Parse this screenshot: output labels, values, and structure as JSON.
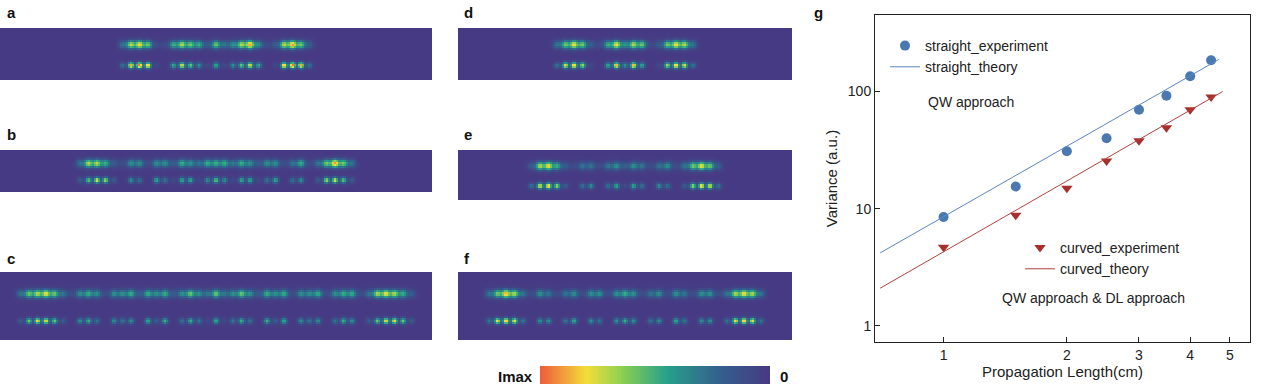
{
  "panels": [
    {
      "label": "a",
      "top": [
        0.3,
        0.7,
        0.8,
        0.6,
        0.1,
        0.1,
        0.5,
        0.7,
        0.6,
        0.5,
        0.2,
        0.6,
        0.3,
        0.4,
        0.7,
        0.9,
        0.4,
        0.1,
        0.2,
        0.7,
        0.9,
        0.6,
        0.2
      ],
      "bottom": [
        0.3,
        0.9,
        1.0,
        0.9,
        0.1,
        0.0,
        0.5,
        0.8,
        0.6,
        0.4,
        0.1,
        0.5,
        0.1,
        0.4,
        0.6,
        0.8,
        0.5,
        0.0,
        0.1,
        0.9,
        1.0,
        0.9,
        0.3
      ]
    },
    {
      "label": "b",
      "top": [
        0.3,
        0.7,
        0.7,
        0.5,
        0.2,
        0.1,
        0.4,
        0.4,
        0.1,
        0.4,
        0.4,
        0.2,
        0.5,
        0.4,
        0.3,
        0.5,
        0.5,
        0.5,
        0.3,
        0.5,
        0.4,
        0.2,
        0.4,
        0.4,
        0.1,
        0.3,
        0.5,
        0.1,
        0.3,
        0.6,
        0.9,
        0.6,
        0.3
      ],
      "bottom": [
        0.2,
        0.6,
        0.8,
        0.7,
        0.2,
        0.0,
        0.4,
        0.3,
        0.0,
        0.5,
        0.3,
        0.1,
        0.5,
        0.5,
        0.1,
        0.4,
        0.6,
        0.4,
        0.1,
        0.5,
        0.5,
        0.1,
        0.3,
        0.5,
        0.0,
        0.3,
        0.4,
        0.0,
        0.2,
        0.7,
        0.8,
        0.6,
        0.2
      ]
    },
    {
      "label": "c",
      "top": [
        0.3,
        0.6,
        0.7,
        0.8,
        0.6,
        0.3,
        0.1,
        0.4,
        0.5,
        0.4,
        0.1,
        0.4,
        0.4,
        0.5,
        0.2,
        0.5,
        0.4,
        0.5,
        0.2,
        0.4,
        0.6,
        0.4,
        0.3,
        0.6,
        0.3,
        0.4,
        0.6,
        0.4,
        0.2,
        0.5,
        0.4,
        0.5,
        0.1,
        0.4,
        0.4,
        0.5,
        0.1,
        0.4,
        0.5,
        0.5,
        0.1,
        0.3,
        0.7,
        0.8,
        0.7,
        0.5,
        0.2
      ],
      "bottom": [
        0.2,
        0.6,
        0.8,
        0.8,
        0.6,
        0.2,
        0.0,
        0.4,
        0.5,
        0.3,
        0.0,
        0.4,
        0.3,
        0.4,
        0.0,
        0.5,
        0.2,
        0.5,
        0.0,
        0.3,
        0.5,
        0.3,
        0.1,
        0.5,
        0.1,
        0.3,
        0.5,
        0.3,
        0.0,
        0.5,
        0.2,
        0.5,
        0.0,
        0.4,
        0.3,
        0.4,
        0.0,
        0.3,
        0.5,
        0.4,
        0.0,
        0.2,
        0.6,
        0.8,
        0.8,
        0.6,
        0.2
      ]
    },
    {
      "label": "d",
      "top": [
        0.3,
        0.6,
        0.8,
        0.6,
        0.2,
        0.1,
        0.5,
        0.8,
        0.4,
        0.7,
        0.6,
        0.1,
        0.2,
        0.6,
        0.8,
        0.7,
        0.3
      ],
      "bottom": [
        0.3,
        0.8,
        0.9,
        0.7,
        0.1,
        0.0,
        0.5,
        0.9,
        0.4,
        0.9,
        0.5,
        0.0,
        0.1,
        0.7,
        0.9,
        0.8,
        0.3
      ]
    },
    {
      "label": "e",
      "top": [
        0.2,
        0.7,
        0.8,
        0.5,
        0.2,
        0.1,
        0.3,
        0.3,
        0.1,
        0.3,
        0.4,
        0.2,
        0.4,
        0.3,
        0.1,
        0.3,
        0.4,
        0.1,
        0.3,
        0.6,
        0.8,
        0.6,
        0.2
      ],
      "bottom": [
        0.3,
        0.8,
        0.9,
        0.7,
        0.2,
        0.0,
        0.3,
        0.4,
        0.0,
        0.3,
        0.5,
        0.1,
        0.5,
        0.3,
        0.0,
        0.4,
        0.3,
        0.0,
        0.2,
        0.7,
        0.9,
        0.8,
        0.3
      ]
    },
    {
      "label": "f",
      "top": [
        0.3,
        0.6,
        0.9,
        0.7,
        0.3,
        0.1,
        0.4,
        0.3,
        0.1,
        0.3,
        0.4,
        0.1,
        0.4,
        0.4,
        0.1,
        0.4,
        0.5,
        0.4,
        0.1,
        0.3,
        0.4,
        0.1,
        0.4,
        0.3,
        0.1,
        0.4,
        0.4,
        0.1,
        0.3,
        0.7,
        0.8,
        0.7,
        0.3
      ],
      "bottom": [
        0.3,
        0.8,
        0.9,
        0.8,
        0.3,
        0.0,
        0.4,
        0.4,
        0.0,
        0.3,
        0.5,
        0.0,
        0.4,
        0.3,
        0.0,
        0.4,
        0.5,
        0.4,
        0.0,
        0.3,
        0.4,
        0.0,
        0.5,
        0.3,
        0.0,
        0.4,
        0.4,
        0.0,
        0.3,
        0.8,
        0.9,
        0.8,
        0.3
      ]
    }
  ],
  "colorbar": {
    "range": [
      0,
      1
    ],
    "labels": [
      "Imax",
      "0"
    ]
  },
  "chart_data": {
    "label": "g",
    "type": "scatter",
    "log": true,
    "grid": false,
    "xlabel": "Propagation Length(cm)",
    "ylabel": "Variance (a.u.)",
    "xlim": [
      0.68,
      5.6
    ],
    "ylim": [
      0.73,
      450
    ],
    "xticks": [
      1,
      2,
      3,
      4,
      5
    ],
    "yticks": [
      1,
      10,
      100
    ],
    "series": [
      {
        "name": "straight_experiment",
        "type": "scatter",
        "color": "#4a79b0",
        "marker": "circle",
        "x": [
          1,
          1.5,
          2,
          2.5,
          3,
          3.5,
          4,
          4.5
        ],
        "values": [
          8.5,
          15.5,
          31,
          40,
          70,
          92,
          135,
          185
        ]
      },
      {
        "name": "straight_theory",
        "type": "line",
        "color": "#5b86c2",
        "line_style": "solid",
        "x": [
          0.7,
          4.7
        ],
        "values": [
          4.2,
          188
        ]
      },
      {
        "name": "curved_experiment",
        "type": "scatter",
        "color": "#a8302c",
        "marker": "triangle-down",
        "x": [
          1,
          1.5,
          2,
          2.5,
          3,
          3.5,
          4,
          4.5
        ],
        "values": [
          4.7,
          8.8,
          15,
          25.5,
          38,
          49,
          70,
          90
        ]
      },
      {
        "name": "curved_theory",
        "type": "line",
        "color": "#b5413d",
        "line_style": "solid",
        "x": [
          0.7,
          4.8
        ],
        "values": [
          2.1,
          100
        ]
      }
    ],
    "annotations": [
      "QW approach",
      "QW approach & DL approach"
    ]
  }
}
